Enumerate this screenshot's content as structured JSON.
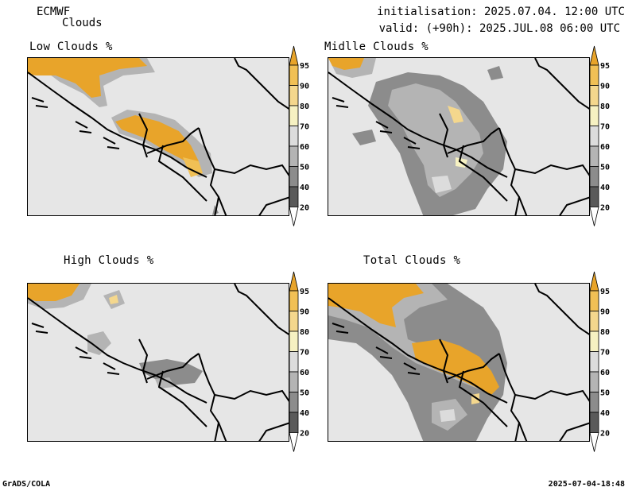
{
  "header": {
    "model": "ECMWF",
    "product": "Clouds",
    "init": "initialisation: 2025.07.04. 12:00 UTC",
    "valid": "valid: (+90h): 2025.JUL.08 06:00 UTC"
  },
  "panels": [
    {
      "title": "Low Clouds %"
    },
    {
      "title": "Midlle Clouds %"
    },
    {
      "title": "High Clouds %"
    },
    {
      "title": "Total Clouds %"
    }
  ],
  "colorbar": {
    "levels": [
      "95",
      "90",
      "80",
      "70",
      "60",
      "50",
      "40",
      "20"
    ],
    "colors": [
      "#e8a42a",
      "#f1c055",
      "#f4d78d",
      "#f6f1c2",
      "#dcdcdc",
      "#b4b4b4",
      "#8c8c8c",
      "#5a5a5a",
      "#ffffff"
    ]
  },
  "footer": {
    "left": "GrADS/COLA",
    "right": "2025-07-04-18:48"
  }
}
